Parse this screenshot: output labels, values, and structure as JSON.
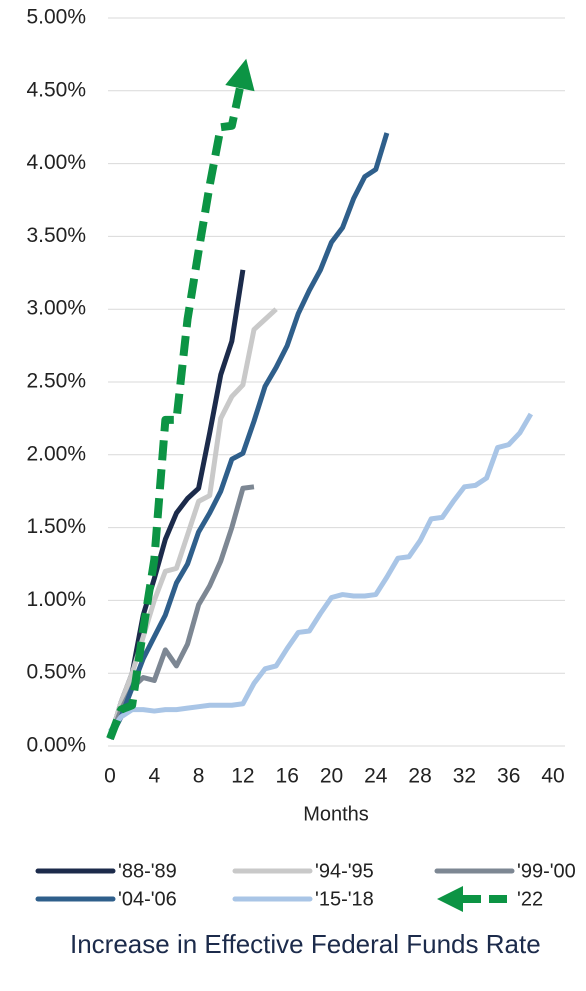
{
  "chart_data": {
    "type": "line",
    "title": "Increase in Effective Federal Funds Rate",
    "xlabel": "Months",
    "xlim": [
      0,
      40
    ],
    "xticks": [
      0,
      4,
      8,
      12,
      16,
      20,
      24,
      28,
      32,
      36,
      40
    ],
    "ylim": [
      0,
      5
    ],
    "yticks": [
      {
        "value": 0,
        "label": "0.00%"
      },
      {
        "value": 0.5,
        "label": "0.50%"
      },
      {
        "value": 1,
        "label": "1.00%"
      },
      {
        "value": 1.5,
        "label": "1.50%"
      },
      {
        "value": 2,
        "label": "2.00%"
      },
      {
        "value": 2.5,
        "label": "2.50%"
      },
      {
        "value": 3,
        "label": "3.00%"
      },
      {
        "value": 3.5,
        "label": "3.50%"
      },
      {
        "value": 4,
        "label": "4.00%"
      },
      {
        "value": 4.5,
        "label": "4.50%"
      },
      {
        "value": 5,
        "label": "5.00%"
      }
    ],
    "grid": true,
    "series": [
      {
        "name": "'88-'89",
        "color": "#1c2b4b",
        "x": [
          0,
          1,
          2,
          3,
          4,
          5,
          6,
          7,
          8,
          9,
          10,
          11,
          12
        ],
        "values": [
          0.05,
          0.3,
          0.5,
          0.9,
          1.15,
          1.42,
          1.6,
          1.7,
          1.77,
          2.15,
          2.55,
          2.78,
          3.27
        ]
      },
      {
        "name": "'94-'95",
        "color": "#c9c9c9",
        "x": [
          0,
          1,
          2,
          3,
          4,
          5,
          6,
          7,
          8,
          9,
          10,
          11,
          12,
          13,
          14,
          15
        ],
        "values": [
          0.05,
          0.3,
          0.5,
          0.75,
          1.0,
          1.2,
          1.22,
          1.45,
          1.68,
          1.72,
          2.25,
          2.4,
          2.48,
          2.86,
          2.93,
          3.0
        ]
      },
      {
        "name": "'99-'00",
        "color": "#7d8793",
        "x": [
          0,
          1,
          2,
          3,
          4,
          5,
          6,
          7,
          8,
          9,
          10,
          11,
          12,
          13
        ],
        "values": [
          0.05,
          0.25,
          0.4,
          0.47,
          0.45,
          0.66,
          0.55,
          0.7,
          0.97,
          1.1,
          1.27,
          1.5,
          1.77,
          1.78
        ]
      },
      {
        "name": "'04-'06",
        "color": "#2f5f8b",
        "x": [
          0,
          1,
          2,
          3,
          4,
          5,
          6,
          7,
          8,
          9,
          10,
          11,
          12,
          13,
          14,
          15,
          16,
          17,
          18,
          19,
          20,
          21,
          22,
          23,
          24,
          25
        ],
        "values": [
          0.05,
          0.2,
          0.4,
          0.6,
          0.75,
          0.9,
          1.12,
          1.25,
          1.47,
          1.6,
          1.75,
          1.97,
          2.01,
          2.23,
          2.47,
          2.6,
          2.75,
          2.97,
          3.13,
          3.27,
          3.46,
          3.56,
          3.76,
          3.91,
          3.96,
          4.21
        ]
      },
      {
        "name": "'15-'18",
        "color": "#a9c5e6",
        "x": [
          0,
          1,
          2,
          3,
          4,
          5,
          6,
          7,
          8,
          9,
          10,
          11,
          12,
          13,
          14,
          15,
          16,
          17,
          18,
          19,
          20,
          21,
          22,
          23,
          24,
          25,
          26,
          27,
          28,
          29,
          30,
          31,
          32,
          33,
          34,
          35,
          36,
          37,
          38
        ],
        "values": [
          0.1,
          0.2,
          0.25,
          0.25,
          0.24,
          0.25,
          0.25,
          0.26,
          0.27,
          0.28,
          0.28,
          0.28,
          0.29,
          0.43,
          0.53,
          0.55,
          0.67,
          0.78,
          0.79,
          0.91,
          1.02,
          1.04,
          1.03,
          1.03,
          1.04,
          1.16,
          1.29,
          1.3,
          1.41,
          1.56,
          1.57,
          1.68,
          1.78,
          1.79,
          1.84,
          2.05,
          2.07,
          2.15,
          2.28
        ]
      },
      {
        "name": "'22",
        "color": "#0c9444",
        "dash": true,
        "arrow": true,
        "x": [
          0,
          1,
          2,
          3,
          4,
          5,
          6,
          7,
          8,
          9,
          10,
          11,
          12.3
        ],
        "values": [
          0.05,
          0.25,
          0.28,
          0.8,
          1.28,
          2.24,
          2.24,
          2.93,
          3.4,
          3.85,
          4.25,
          4.26,
          4.72
        ]
      }
    ]
  }
}
